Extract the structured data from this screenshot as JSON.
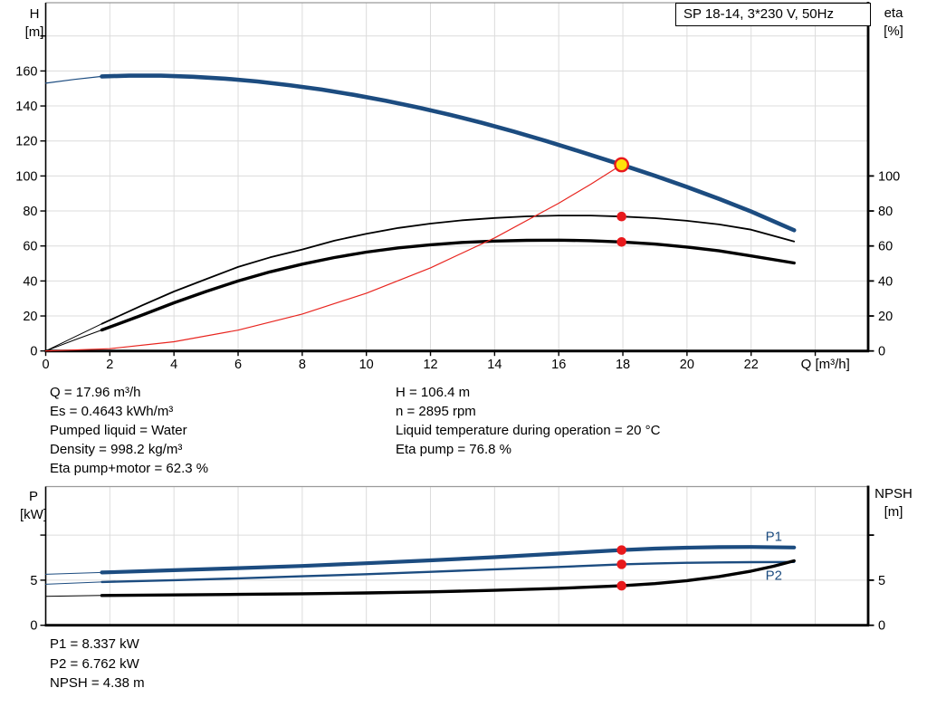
{
  "title_box": {
    "text": "SP 18-14, 3*230 V, 50Hz"
  },
  "colors": {
    "blue": "#1c4c80",
    "black": "#000000",
    "red": "#e8251f",
    "grid": "#dcdcdc",
    "frame": "#000000",
    "frame_top": "#9a9a9a",
    "dot": "#e8191c",
    "duty_fill": "#ffe10a",
    "label_blue": "#1c4c80"
  },
  "info_left": {
    "lines": [
      "Q = 17.96 m³/h",
      "Es = 0.4643 kWh/m³",
      "Pumped liquid = Water",
      "Density = 998.2 kg/m³",
      "Eta pump+motor = 62.3 %"
    ]
  },
  "info_right": {
    "lines": [
      "H = 106.4 m",
      "n = 2895 rpm",
      "Liquid temperature during operation = 20 °C",
      "Eta pump = 76.8 %"
    ]
  },
  "info_bottom": {
    "lines": [
      "P1 = 8.337 kW",
      "P2 = 6.762 kW",
      "NPSH = 4.38 m"
    ]
  },
  "chart_data": [
    {
      "type": "line",
      "title": "SP 18-14, 3*230 V, 50Hz",
      "x_axis": {
        "label": "Q [m³/h]",
        "unit_at": 23.55,
        "min": 0,
        "max": 25.65,
        "grid": [
          2,
          4,
          6,
          8,
          10,
          12,
          14,
          16,
          18,
          20,
          22,
          24
        ],
        "ticks": [
          [
            0,
            "0"
          ],
          [
            2,
            "2"
          ],
          [
            4,
            "4"
          ],
          [
            6,
            "6"
          ],
          [
            8,
            "8"
          ],
          [
            10,
            "10"
          ],
          [
            12,
            "12"
          ],
          [
            14,
            "14"
          ],
          [
            16,
            "16"
          ],
          [
            18,
            "18"
          ],
          [
            20,
            "20"
          ],
          [
            22,
            "22"
          ],
          [
            24,
            ""
          ]
        ]
      },
      "y_left": {
        "name": "H",
        "unit": "[m]",
        "min": 0,
        "max": 199,
        "grid": [
          20,
          40,
          60,
          80,
          100,
          120,
          140,
          160,
          180
        ],
        "ticks": [
          [
            0,
            "0"
          ],
          [
            20,
            "20"
          ],
          [
            40,
            "40"
          ],
          [
            60,
            "60"
          ],
          [
            80,
            "80"
          ],
          [
            100,
            "100"
          ],
          [
            120,
            "120"
          ],
          [
            140,
            "140"
          ],
          [
            160,
            "160"
          ],
          [
            180,
            ""
          ]
        ]
      },
      "y_right": {
        "name": "eta",
        "unit": "[%]",
        "min": 0,
        "max": 199,
        "ticks": [
          [
            0,
            "0"
          ],
          [
            20,
            "20"
          ],
          [
            40,
            "40"
          ],
          [
            60,
            "60"
          ],
          [
            80,
            "80"
          ],
          [
            100,
            "100"
          ]
        ]
      },
      "series": [
        {
          "name": "head-curve-lead",
          "color": "blue",
          "width": 1.2,
          "points": [
            [
              0,
              153
            ],
            [
              0.9,
              155.2
            ],
            [
              1.75,
              156.9
            ]
          ]
        },
        {
          "name": "head-curve",
          "color": "blue",
          "width": 4.6,
          "points": [
            [
              1.75,
              156.9
            ],
            [
              2.6,
              157.3
            ],
            [
              3.6,
              157.3
            ],
            [
              4.6,
              156.7
            ],
            [
              5.6,
              155.6
            ],
            [
              6.6,
              154
            ],
            [
              7.6,
              151.9
            ],
            [
              8.6,
              149.4
            ],
            [
              9.6,
              146.4
            ],
            [
              10.6,
              143
            ],
            [
              11.6,
              139.2
            ],
            [
              12.6,
              135
            ],
            [
              13.6,
              130.4
            ],
            [
              14.6,
              125.4
            ],
            [
              15.6,
              120
            ],
            [
              16.6,
              114.3
            ],
            [
              17.96,
              106.4
            ],
            [
              19,
              100.1
            ],
            [
              20,
              93.7
            ],
            [
              21,
              86.9
            ],
            [
              22,
              79.7
            ],
            [
              23.34,
              69
            ]
          ]
        },
        {
          "name": "eta-pump-lead",
          "color": "black",
          "width": 1,
          "points": [
            [
              0,
              0
            ],
            [
              0.9,
              8
            ],
            [
              1.75,
              15.5
            ]
          ]
        },
        {
          "name": "eta-pump-curve",
          "color": "black",
          "width": 1.8,
          "points": [
            [
              1.75,
              15.5
            ],
            [
              3,
              26
            ],
            [
              4,
              34
            ],
            [
              5,
              41
            ],
            [
              6,
              48
            ],
            [
              7,
              53.5
            ],
            [
              8,
              58
            ],
            [
              9,
              63
            ],
            [
              10,
              67
            ],
            [
              11,
              70.3
            ],
            [
              12,
              72.8
            ],
            [
              13,
              74.7
            ],
            [
              14,
              76
            ],
            [
              15,
              76.9
            ],
            [
              16,
              77.4
            ],
            [
              17,
              77.4
            ],
            [
              17.96,
              76.8
            ],
            [
              19,
              75.9
            ],
            [
              20,
              74.4
            ],
            [
              21,
              72.3
            ],
            [
              22,
              69.3
            ],
            [
              23.34,
              62.6
            ]
          ]
        },
        {
          "name": "eta-pump-motor-lead",
          "color": "black",
          "width": 1,
          "points": [
            [
              0,
              0
            ],
            [
              0.9,
              6.3
            ],
            [
              1.75,
              12
            ]
          ]
        },
        {
          "name": "eta-pump-motor-curve",
          "color": "black",
          "width": 3.4,
          "points": [
            [
              1.75,
              12
            ],
            [
              3,
              20.5
            ],
            [
              4,
              27.5
            ],
            [
              5,
              34
            ],
            [
              6,
              40
            ],
            [
              7,
              45.2
            ],
            [
              8,
              49.6
            ],
            [
              9,
              53.4
            ],
            [
              10,
              56.5
            ],
            [
              11,
              58.9
            ],
            [
              12,
              60.7
            ],
            [
              13,
              62
            ],
            [
              14,
              62.8
            ],
            [
              15,
              63.2
            ],
            [
              16,
              63.3
            ],
            [
              17,
              63
            ],
            [
              17.96,
              62.3
            ],
            [
              19,
              61.1
            ],
            [
              20,
              59.4
            ],
            [
              21,
              57.2
            ],
            [
              22,
              54.3
            ],
            [
              23.34,
              50.3
            ]
          ]
        },
        {
          "name": "system-curve",
          "color": "red",
          "width": 1.2,
          "points": [
            [
              0,
              0
            ],
            [
              2,
              1.3
            ],
            [
              4,
              5.3
            ],
            [
              6,
              11.9
            ],
            [
              8,
              21.1
            ],
            [
              10,
              33
            ],
            [
              12,
              47.5
            ],
            [
              14,
              64.6
            ],
            [
              16,
              84.4
            ],
            [
              17,
              95.3
            ],
            [
              17.96,
              106.4
            ]
          ]
        }
      ],
      "markers": [
        {
          "kind": "duty-point",
          "x": 17.96,
          "y": 106.4
        },
        {
          "kind": "dot",
          "x": 17.96,
          "y": 76.8
        },
        {
          "kind": "dot",
          "x": 17.96,
          "y": 62.3
        }
      ]
    },
    {
      "type": "line",
      "x_axis": {
        "label": "",
        "min": 0,
        "max": 25.65,
        "grid": [
          2,
          4,
          6,
          8,
          10,
          12,
          14,
          16,
          18,
          20,
          22,
          24
        ],
        "ticks": []
      },
      "y_left": {
        "name": "P",
        "unit": "[kW]",
        "min": 0,
        "max": 15.38,
        "grid": [
          5,
          10
        ],
        "ticks": [
          [
            0,
            "0"
          ],
          [
            5,
            "5"
          ],
          [
            10,
            ""
          ]
        ]
      },
      "y_right": {
        "name": "NPSH",
        "unit": "[m]",
        "min": 0,
        "max": 15.38,
        "ticks": [
          [
            0,
            "0"
          ],
          [
            5,
            "5"
          ],
          [
            10,
            ""
          ]
        ]
      },
      "series": [
        {
          "name": "p1-lead",
          "color": "blue",
          "width": 1,
          "points": [
            [
              0,
              5.65
            ],
            [
              1.75,
              5.85
            ]
          ]
        },
        {
          "name": "p1-curve",
          "color": "blue",
          "width": 4.2,
          "label": "P1",
          "label_at": [
            22.45,
            9.35
          ],
          "points": [
            [
              1.75,
              5.85
            ],
            [
              4,
              6.1
            ],
            [
              6,
              6.33
            ],
            [
              8,
              6.58
            ],
            [
              10,
              6.88
            ],
            [
              12,
              7.2
            ],
            [
              14,
              7.55
            ],
            [
              16,
              7.95
            ],
            [
              17.96,
              8.34
            ],
            [
              19,
              8.5
            ],
            [
              20,
              8.6
            ],
            [
              21,
              8.66
            ],
            [
              22,
              8.68
            ],
            [
              23.34,
              8.62
            ]
          ]
        },
        {
          "name": "p2-lead",
          "color": "blue",
          "width": 1,
          "points": [
            [
              0,
              4.55
            ],
            [
              1.75,
              4.8
            ]
          ]
        },
        {
          "name": "p2-curve",
          "color": "blue",
          "width": 2.4,
          "label": "P2",
          "label_at": [
            22.45,
            5.05
          ],
          "points": [
            [
              1.75,
              4.8
            ],
            [
              4,
              5.0
            ],
            [
              6,
              5.2
            ],
            [
              8,
              5.43
            ],
            [
              10,
              5.66
            ],
            [
              12,
              5.92
            ],
            [
              14,
              6.2
            ],
            [
              16,
              6.47
            ],
            [
              17.96,
              6.76
            ],
            [
              19,
              6.86
            ],
            [
              20,
              6.93
            ],
            [
              21,
              6.97
            ],
            [
              22,
              7.0
            ],
            [
              23.34,
              7.02
            ]
          ]
        },
        {
          "name": "npsh-lead",
          "color": "black",
          "width": 1,
          "points": [
            [
              0,
              3.2
            ],
            [
              1.75,
              3.3
            ]
          ]
        },
        {
          "name": "npsh-curve",
          "color": "black",
          "width": 3.4,
          "points": [
            [
              1.75,
              3.3
            ],
            [
              4,
              3.36
            ],
            [
              6,
              3.42
            ],
            [
              8,
              3.49
            ],
            [
              10,
              3.58
            ],
            [
              12,
              3.7
            ],
            [
              14,
              3.88
            ],
            [
              16,
              4.1
            ],
            [
              17.96,
              4.38
            ],
            [
              19,
              4.62
            ],
            [
              20,
              4.95
            ],
            [
              21,
              5.4
            ],
            [
              22,
              6.0
            ],
            [
              22.7,
              6.55
            ],
            [
              23.34,
              7.15
            ]
          ]
        }
      ],
      "markers": [
        {
          "kind": "dot",
          "x": 17.96,
          "y": 8.34
        },
        {
          "kind": "dot",
          "x": 17.96,
          "y": 6.76
        },
        {
          "kind": "dot",
          "x": 17.96,
          "y": 4.38
        }
      ]
    }
  ]
}
